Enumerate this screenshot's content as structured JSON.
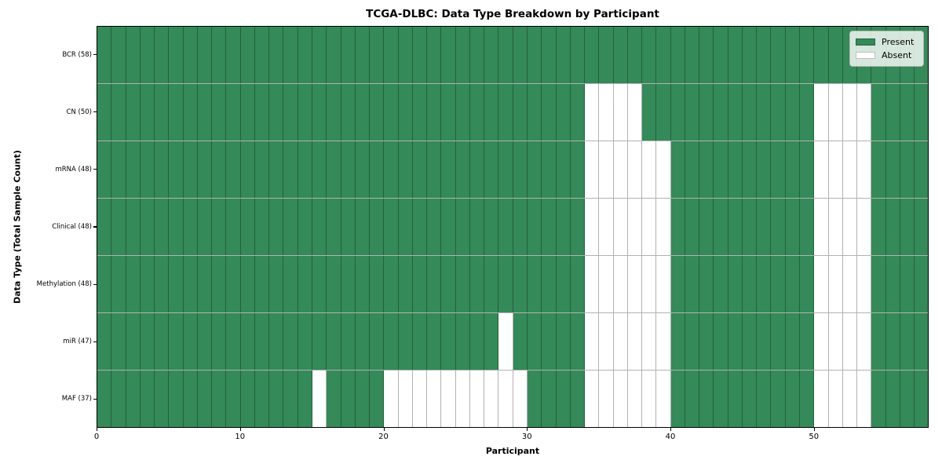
{
  "title": "TCGA-DLBC: Data Type Breakdown by Participant",
  "legend": {
    "items": [
      {
        "label": "Present",
        "color": "#348a58"
      },
      {
        "label": "Absent",
        "color": "#ffffff"
      }
    ]
  },
  "chart_data": {
    "type": "heatmap",
    "title": "TCGA-DLBC: Data Type Breakdown by Participant",
    "xlabel": "Participant",
    "ylabel": "Data Type (Total Sample Count)",
    "n_participants": 58,
    "xlim": [
      0,
      58
    ],
    "x_ticks": [
      0,
      10,
      20,
      30,
      40,
      50
    ],
    "grid": true,
    "legend_position": "upper right",
    "colors": {
      "present": "#348a58",
      "absent": "#ffffff",
      "gridline": "rgba(0,0,0,0.30)"
    },
    "rows": [
      {
        "label": "BCR (58)",
        "name": "BCR",
        "total_samples": 58,
        "absent_participants": []
      },
      {
        "label": "CN (50)",
        "name": "CN",
        "total_samples": 50,
        "absent_participants": [
          34,
          35,
          36,
          37,
          50,
          51,
          52,
          53
        ]
      },
      {
        "label": "mRNA (48)",
        "name": "mRNA",
        "total_samples": 48,
        "absent_participants": [
          34,
          35,
          36,
          37,
          38,
          39,
          50,
          51,
          52,
          53
        ]
      },
      {
        "label": "Clinical (48)",
        "name": "Clinical",
        "total_samples": 48,
        "absent_participants": [
          34,
          35,
          36,
          37,
          38,
          39,
          50,
          51,
          52,
          53
        ]
      },
      {
        "label": "Methylation (48)",
        "name": "Methylation",
        "total_samples": 48,
        "absent_participants": [
          34,
          35,
          36,
          37,
          38,
          39,
          50,
          51,
          52,
          53
        ]
      },
      {
        "label": "miR (47)",
        "name": "miR",
        "total_samples": 47,
        "absent_participants": [
          28,
          34,
          35,
          36,
          37,
          38,
          39,
          50,
          51,
          52,
          53
        ]
      },
      {
        "label": "MAF (37)",
        "name": "MAF",
        "total_samples": 37,
        "absent_participants": [
          15,
          20,
          21,
          22,
          23,
          24,
          25,
          26,
          27,
          28,
          29,
          34,
          35,
          36,
          37,
          38,
          39,
          50,
          51,
          52,
          53
        ]
      }
    ]
  }
}
